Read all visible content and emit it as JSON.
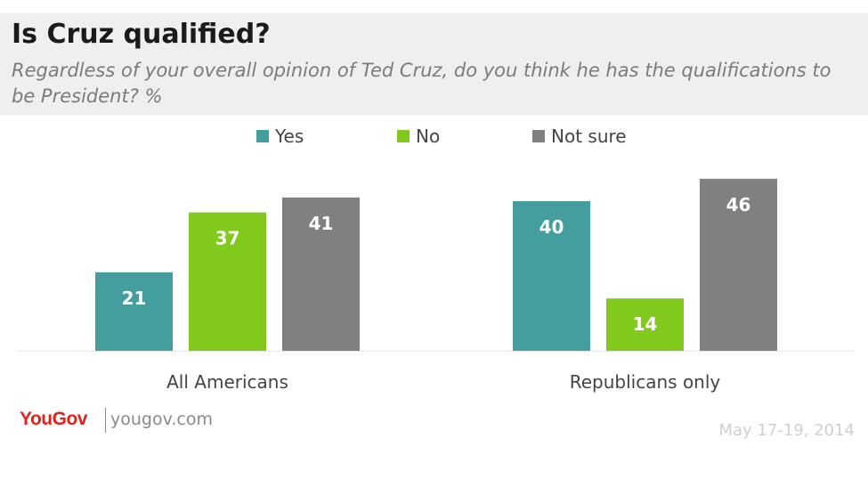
{
  "header": {
    "title": "Is Cruz qualified?",
    "subtitle": "Regardless of your overall opinion of Ted Cruz, do you think he has the qualifications to be President? %"
  },
  "footer": {
    "brand": "YouGov",
    "url": "yougov.com",
    "date": "May 17-19, 2014"
  },
  "colors": {
    "yes": "#459e9e",
    "no": "#82c91e",
    "not_sure": "#808080",
    "bar_label": "#ffffff",
    "axis_line": "#e6e6e6",
    "category_label": "#444444"
  },
  "chart_data": {
    "type": "bar",
    "categories": [
      "All Americans",
      "Republicans only"
    ],
    "series": [
      {
        "name": "Yes",
        "values": [
          21,
          40
        ]
      },
      {
        "name": "No",
        "values": [
          37,
          14
        ]
      },
      {
        "name": "Not sure",
        "values": [
          41,
          46
        ]
      }
    ],
    "ylim": [
      0,
      50
    ],
    "grid": false,
    "legend_placement": "top-center",
    "data_labels": true
  }
}
